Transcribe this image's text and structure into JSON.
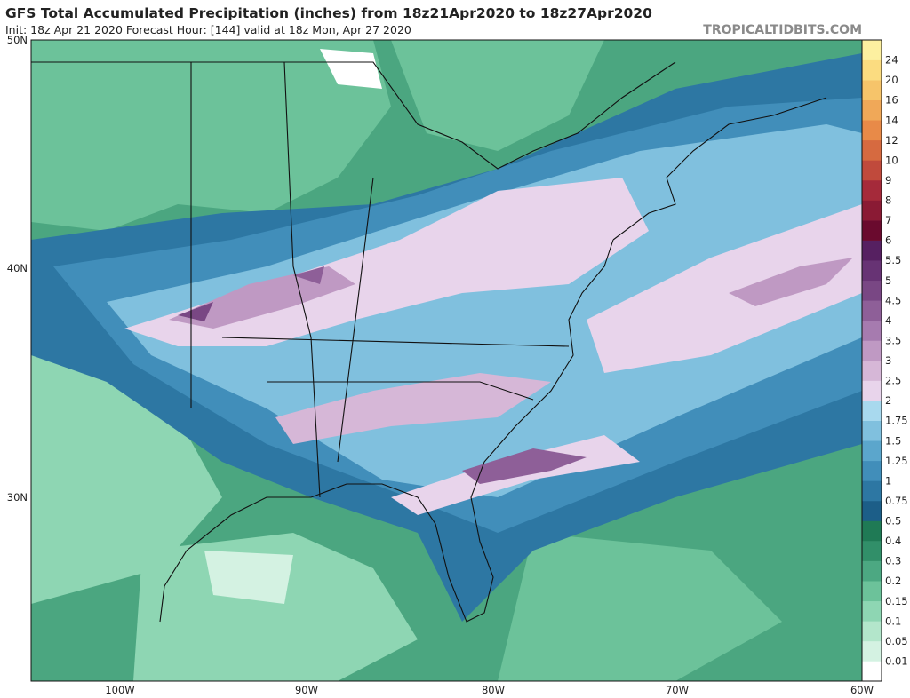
{
  "header": {
    "title": "GFS Total Accumulated Precipitation (inches) from 18z21Apr2020 to 18z27Apr2020",
    "subtitle": "Init: 18z Apr 21 2020   Forecast Hour: [144]   valid at 18z Mon, Apr 27 2020",
    "site": "TROPICALTIDBITS.COM"
  },
  "map": {
    "lat_labels": [
      "50N",
      "40N",
      "30N"
    ],
    "lon_labels": [
      "100W",
      "90W",
      "80W",
      "70W",
      "60W"
    ]
  },
  "colorbar": {
    "levels": [
      {
        "value": 0.01,
        "color": "#d4f2e2"
      },
      {
        "value": 0.05,
        "color": "#b3e6cb"
      },
      {
        "value": 0.1,
        "color": "#8ed6b3"
      },
      {
        "value": 0.15,
        "color": "#6cc29a"
      },
      {
        "value": 0.2,
        "color": "#4ca882"
      },
      {
        "value": 0.3,
        "color": "#318f69"
      },
      {
        "value": 0.4,
        "color": "#1f7a55"
      },
      {
        "value": 0.5,
        "color": "#1c5e88"
      },
      {
        "value": 0.75,
        "color": "#2d77a3"
      },
      {
        "value": 1,
        "color": "#418eba"
      },
      {
        "value": 1.25,
        "color": "#5ba6cc"
      },
      {
        "value": 1.5,
        "color": "#80c0de"
      },
      {
        "value": 1.75,
        "color": "#a8d9ee"
      },
      {
        "value": 2,
        "color": "#e8d4eb"
      },
      {
        "value": 2.5,
        "color": "#d6b7d7"
      },
      {
        "value": 3,
        "color": "#bf99c3"
      },
      {
        "value": 3.5,
        "color": "#a67baf"
      },
      {
        "value": 4,
        "color": "#8e5f98"
      },
      {
        "value": 4.5,
        "color": "#794784"
      },
      {
        "value": 5,
        "color": "#673374"
      },
      {
        "value": 5.5,
        "color": "#562061"
      },
      {
        "value": 6,
        "color": "#6a0a2e"
      },
      {
        "value": 7,
        "color": "#8a1a34"
      },
      {
        "value": 8,
        "color": "#a52a3a"
      },
      {
        "value": 9,
        "color": "#c04a3c"
      },
      {
        "value": 10,
        "color": "#d66a40"
      },
      {
        "value": 12,
        "color": "#e88a48"
      },
      {
        "value": 14,
        "color": "#f0a858"
      },
      {
        "value": 16,
        "color": "#f6c46a"
      },
      {
        "value": 20,
        "color": "#fbdc80"
      },
      {
        "value": 24,
        "color": "#fdf0a0"
      }
    ]
  }
}
